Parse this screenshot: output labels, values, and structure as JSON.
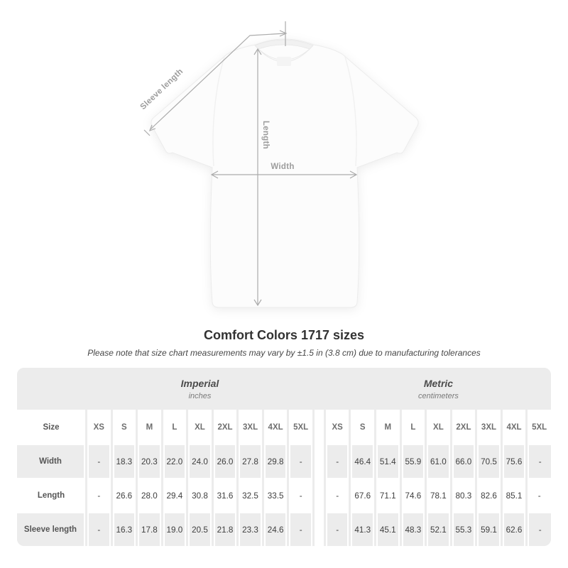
{
  "diagram": {
    "labels": {
      "sleeve": "Sleeve length",
      "length": "Length",
      "width": "Width"
    }
  },
  "heading": {
    "title": "Comfort Colors 1717 sizes",
    "disclaimer": "Please note that size chart measurements may vary by ±1.5 in (3.8 cm) due to manufacturing tolerances"
  },
  "table": {
    "corner_label": "Size",
    "sections": [
      {
        "name": "Imperial",
        "unit": "inches"
      },
      {
        "name": "Metric",
        "unit": "centimeters"
      }
    ],
    "sizes": [
      "XS",
      "S",
      "M",
      "L",
      "XL",
      "2XL",
      "3XL",
      "4XL",
      "5XL"
    ],
    "rows": [
      {
        "label": "Width",
        "imperial": [
          "-",
          "18.3",
          "20.3",
          "22.0",
          "24.0",
          "26.0",
          "27.8",
          "29.8",
          "-"
        ],
        "metric": [
          "-",
          "46.4",
          "51.4",
          "55.9",
          "61.0",
          "66.0",
          "70.5",
          "75.6",
          "-"
        ]
      },
      {
        "label": "Length",
        "imperial": [
          "-",
          "26.6",
          "28.0",
          "29.4",
          "30.8",
          "31.6",
          "32.5",
          "33.5",
          "-"
        ],
        "metric": [
          "-",
          "67.6",
          "71.1",
          "74.6",
          "78.1",
          "80.3",
          "82.6",
          "85.1",
          "-"
        ]
      },
      {
        "label": "Sleeve length",
        "imperial": [
          "-",
          "16.3",
          "17.8",
          "19.0",
          "20.5",
          "21.8",
          "23.3",
          "24.6",
          "-"
        ],
        "metric": [
          "-",
          "41.3",
          "45.1",
          "48.3",
          "52.1",
          "55.3",
          "59.1",
          "62.6",
          "-"
        ]
      }
    ]
  },
  "colors": {
    "stripe": "#ececec",
    "annotation_line": "#ababab",
    "diagram_label": "#9c9c9c"
  }
}
